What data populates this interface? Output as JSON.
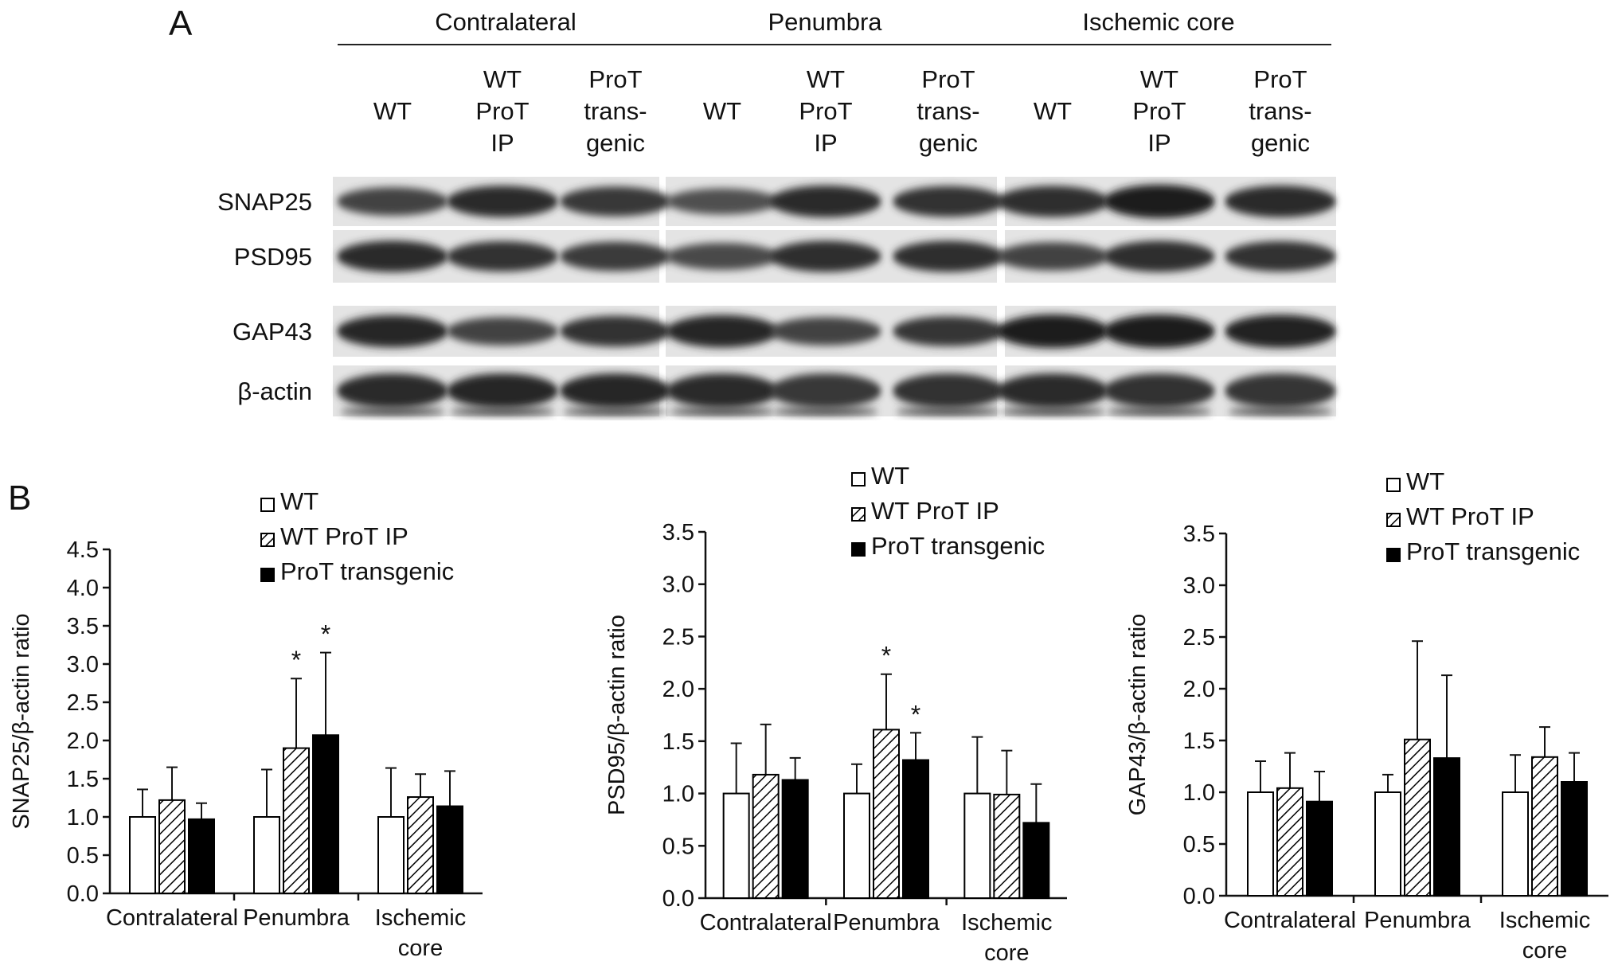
{
  "panel_a": {
    "label": "A",
    "regions": [
      "Contralateral",
      "Penumbra",
      "Ischemic core"
    ],
    "lane_labels": [
      [
        "WT"
      ],
      [
        "WT",
        "ProT",
        "IP"
      ],
      [
        "ProT",
        "trans-",
        "genic"
      ],
      [
        "WT"
      ],
      [
        "WT",
        "ProT",
        "IP"
      ],
      [
        "ProT",
        "trans-",
        "genic"
      ],
      [
        "WT"
      ],
      [
        "WT",
        "ProT",
        "IP"
      ],
      [
        "ProT",
        "trans-",
        "genic"
      ]
    ],
    "row_labels": [
      "SNAP25",
      "PSD95",
      "GAP43",
      "β-actin"
    ],
    "band_intensity": {
      "SNAP25": [
        0.62,
        0.8,
        0.7,
        0.5,
        0.82,
        0.76,
        0.78,
        0.92,
        0.82
      ],
      "PSD95": [
        0.8,
        0.74,
        0.68,
        0.55,
        0.78,
        0.78,
        0.62,
        0.78,
        0.74
      ],
      "GAP43": [
        0.84,
        0.62,
        0.76,
        0.86,
        0.62,
        0.72,
        0.92,
        0.92,
        0.9
      ],
      "β-actin": [
        0.82,
        0.86,
        0.84,
        0.8,
        0.7,
        0.74,
        0.8,
        0.74,
        0.72
      ]
    }
  },
  "panel_b": {
    "label": "B"
  },
  "chart_data": [
    {
      "type": "bar",
      "categories": [
        [
          "Contralateral"
        ],
        [
          "Penumbra"
        ],
        [
          "Ischemic",
          "core"
        ]
      ],
      "series": [
        {
          "name": "WT",
          "values": [
            1.0,
            1.0,
            1.0
          ],
          "errors": [
            0.36,
            0.62,
            0.64
          ]
        },
        {
          "name": "WT ProT IP",
          "values": [
            1.22,
            1.9,
            1.26
          ],
          "errors": [
            0.43,
            0.91,
            0.3
          ]
        },
        {
          "name": "ProT transgenic",
          "values": [
            0.97,
            2.07,
            1.14
          ],
          "errors": [
            0.21,
            1.08,
            0.46
          ]
        }
      ],
      "significance": [
        {
          "category": 1,
          "series": 1,
          "text": "*"
        },
        {
          "category": 1,
          "series": 2,
          "text": "*"
        }
      ],
      "ylabel": "SNAP25/β-actin ratio",
      "ylim": [
        0,
        4.5
      ],
      "ytick_step": 0.5,
      "grid": false,
      "legend": "top-center"
    },
    {
      "type": "bar",
      "categories": [
        [
          "Contralateral"
        ],
        [
          "Penumbra"
        ],
        [
          "Ischemic",
          "core"
        ]
      ],
      "series": [
        {
          "name": "WT",
          "values": [
            1.0,
            1.0,
            1.0
          ],
          "errors": [
            0.48,
            0.28,
            0.54
          ]
        },
        {
          "name": "WT ProT IP",
          "values": [
            1.18,
            1.61,
            0.99
          ],
          "errors": [
            0.48,
            0.53,
            0.42
          ]
        },
        {
          "name": "ProT transgenic",
          "values": [
            1.13,
            1.32,
            0.72
          ],
          "errors": [
            0.21,
            0.26,
            0.37
          ]
        }
      ],
      "significance": [
        {
          "category": 1,
          "series": 1,
          "text": "*"
        },
        {
          "category": 1,
          "series": 2,
          "text": "*"
        }
      ],
      "ylabel": "PSD95/β-actin ratio",
      "ylim": [
        0,
        3.5
      ],
      "ytick_step": 0.5,
      "grid": false,
      "legend": "top-center"
    },
    {
      "type": "bar",
      "categories": [
        [
          "Contralateral"
        ],
        [
          "Penumbra"
        ],
        [
          "Ischemic",
          "core"
        ]
      ],
      "series": [
        {
          "name": "WT",
          "values": [
            1.0,
            1.0,
            1.0
          ],
          "errors": [
            0.3,
            0.17,
            0.36
          ]
        },
        {
          "name": "WT ProT IP",
          "values": [
            1.04,
            1.51,
            1.34
          ],
          "errors": [
            0.34,
            0.95,
            0.29
          ]
        },
        {
          "name": "ProT transgenic",
          "values": [
            0.91,
            1.33,
            1.1
          ],
          "errors": [
            0.29,
            0.8,
            0.28
          ]
        }
      ],
      "significance": [],
      "ylabel": "GAP43/β-actin ratio",
      "ylim": [
        0,
        3.5
      ],
      "ytick_step": 0.5,
      "grid": false,
      "legend": "top-center"
    }
  ]
}
